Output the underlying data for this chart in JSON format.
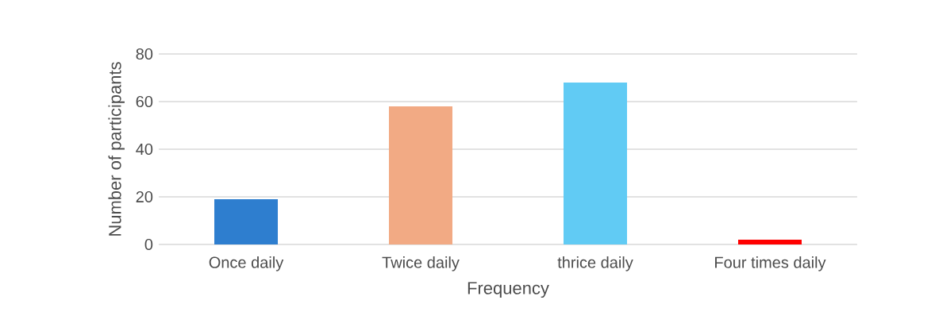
{
  "chart_data": {
    "type": "bar",
    "xlabel": "Frequency",
    "ylabel": "Number of participants",
    "categories": [
      "Once daily",
      "Twice daily",
      "thrice daily",
      "Four times daily"
    ],
    "values": [
      19,
      58,
      68,
      2
    ],
    "colors": [
      "#2e7ecf",
      "#f2aa84",
      "#61cbf4",
      "#ff0000"
    ],
    "ylim": [
      0,
      80
    ],
    "yticks": [
      0,
      20,
      40,
      60,
      80
    ],
    "grid": "y"
  }
}
